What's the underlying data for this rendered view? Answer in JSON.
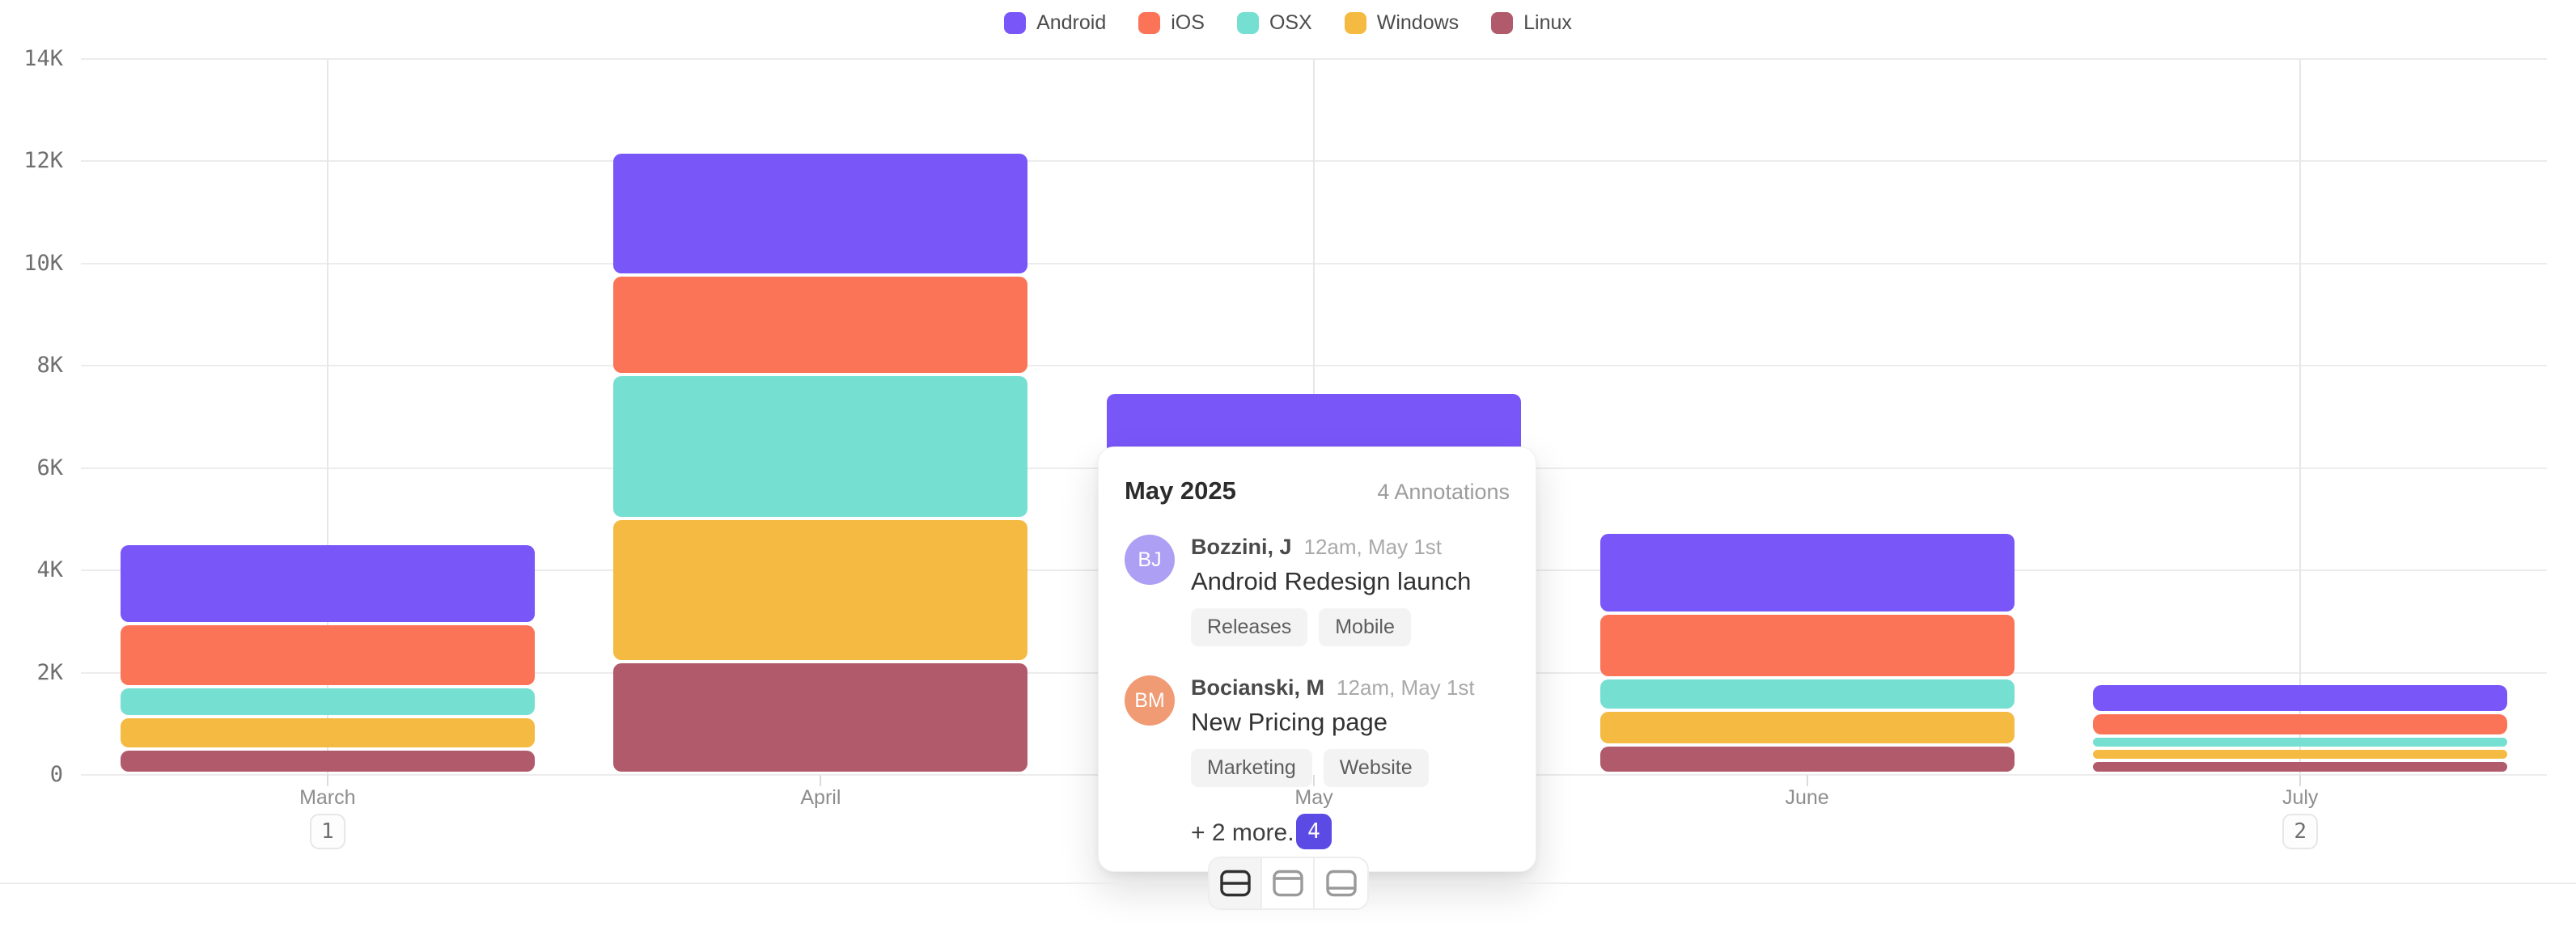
{
  "colors": {
    "grid": "#ececec",
    "annotation_line": "#e7e7e7",
    "axis_text": "#8d8d8d",
    "ytick_text": "#6f6f6f",
    "badge_active_bg": "#5b4ae4",
    "badge_inactive_border": "#e7e7e7"
  },
  "legend": {
    "items": [
      {
        "label": "Android",
        "color": "#7956f8"
      },
      {
        "label": "iOS",
        "color": "#fb7457"
      },
      {
        "label": "OSX",
        "color": "#75dfd2"
      },
      {
        "label": "Windows",
        "color": "#f4ba41"
      },
      {
        "label": "Linux",
        "color": "#b05a6c"
      }
    ]
  },
  "chart_data": {
    "type": "bar",
    "stacked": true,
    "title": "",
    "categories": [
      "March",
      "April",
      "May",
      "June",
      "July"
    ],
    "series": [
      {
        "name": "Android",
        "color": "#7956f8",
        "values": [
          1580,
          2400,
          2050,
          1580,
          560
        ]
      },
      {
        "name": "iOS",
        "color": "#fb7457",
        "values": [
          1230,
          1950,
          1700,
          1260,
          470
        ]
      },
      {
        "name": "OSX",
        "color": "#75dfd2",
        "values": [
          590,
          2820,
          1400,
          640,
          230
        ]
      },
      {
        "name": "Windows",
        "color": "#f4ba41",
        "values": [
          620,
          2800,
          1300,
          670,
          240
        ]
      },
      {
        "name": "Linux",
        "color": "#b05a6c",
        "values": [
          480,
          2180,
          1000,
          560,
          250
        ]
      }
    ],
    "ylim": [
      0,
      14000
    ],
    "y_ticks": [
      "14K",
      "12K",
      "10K",
      "8K",
      "6K",
      "4K",
      "2K",
      "0"
    ],
    "legend_position": "top-center",
    "grid": true,
    "annotated_months": [
      "March",
      "May",
      "July"
    ]
  },
  "x_axis": {
    "months": [
      {
        "label": "March",
        "badge": "1",
        "selected": false
      },
      {
        "label": "April",
        "badge": null,
        "selected": false
      },
      {
        "label": "May",
        "badge": "4",
        "selected": true
      },
      {
        "label": "June",
        "badge": null,
        "selected": false
      },
      {
        "label": "July",
        "badge": "2",
        "selected": false
      }
    ]
  },
  "popover": {
    "title": "May 2025",
    "count_label": "4 Annotations",
    "annotations": [
      {
        "initials": "BJ",
        "avatar_color": "#ac9ff4",
        "author": "Bozzini, J",
        "timestamp": "12am, May 1st",
        "title": "Android Redesign launch",
        "tags": [
          "Releases",
          "Mobile"
        ]
      },
      {
        "initials": "BM",
        "avatar_color": "#f09b74",
        "author": "Bocianski, M",
        "timestamp": "12am, May 1st",
        "title": "New Pricing page",
        "tags": [
          "Marketing",
          "Website"
        ]
      }
    ],
    "more_label": "+ 2 more..."
  },
  "toolbar": {
    "buttons": [
      {
        "icon": "split-middle-icon",
        "active": true
      },
      {
        "icon": "split-top-icon",
        "active": false
      },
      {
        "icon": "split-bottom-icon",
        "active": false
      }
    ]
  }
}
